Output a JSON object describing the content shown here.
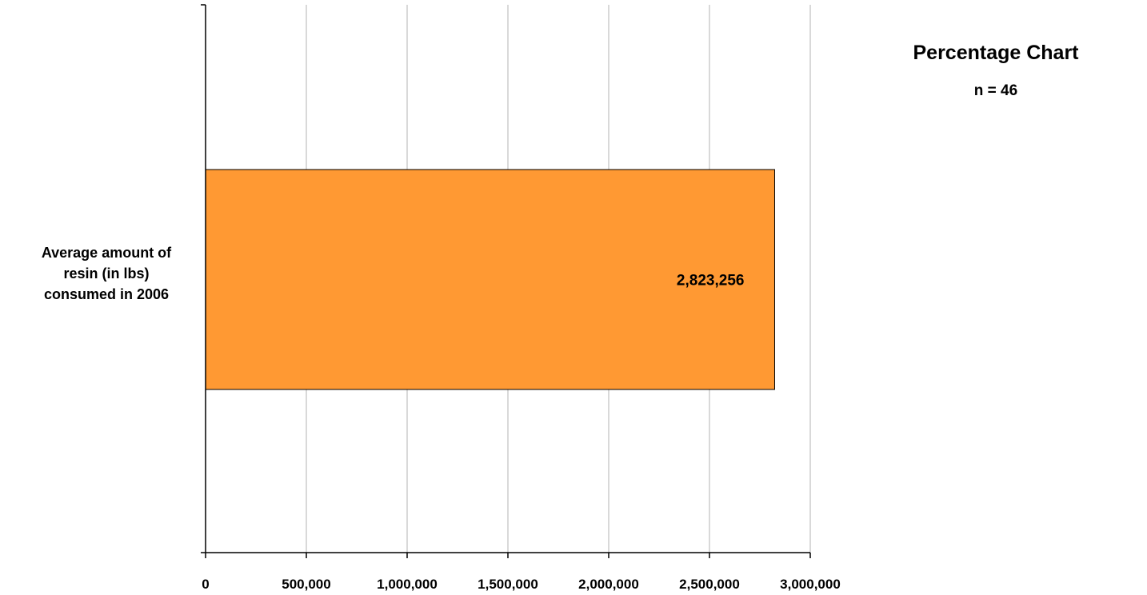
{
  "chart_data": {
    "type": "bar",
    "orientation": "horizontal",
    "title": "Percentage Chart",
    "subtitle": "n = 46",
    "categories": [
      "Average amount of\nresin (in lbs)\nconsumed in 2006"
    ],
    "values": [
      2823256
    ],
    "data_labels": [
      "2,823,256"
    ],
    "xlim": [
      0,
      3000000
    ],
    "x_ticks": [
      0,
      500000,
      1000000,
      1500000,
      2000000,
      2500000,
      3000000
    ],
    "x_tick_labels": [
      "0",
      "500,000",
      "1,000,000",
      "1,500,000",
      "2,000,000",
      "2,500,000",
      "3,000,000"
    ],
    "xlabel": "",
    "ylabel": "",
    "grid": "vertical",
    "legend": "none",
    "colors": {
      "bar": "#FF9933",
      "bar_border": "#000000",
      "grid": "#B3B3B3",
      "axis": "#000000"
    }
  }
}
